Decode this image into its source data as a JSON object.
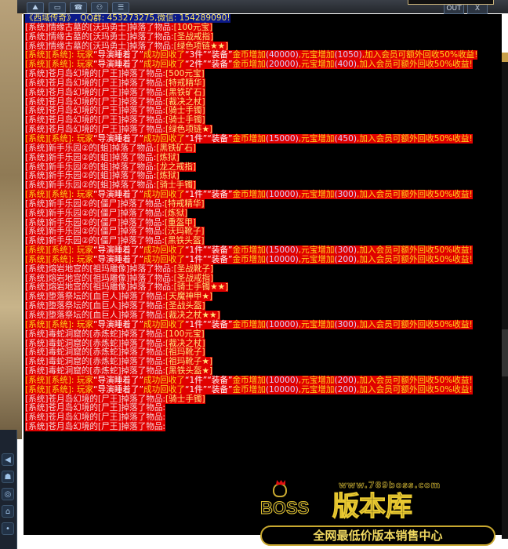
{
  "toolbar": {
    "icons": [
      "mountain-icon",
      "chat-icon",
      "phone-icon",
      "group-icon",
      "message-icon"
    ],
    "out_label": "OUT",
    "close_label": "X"
  },
  "chat": {
    "header": "《西域传奇》, QQ群: 453273275,微信: 154289090!",
    "lines": [
      {
        "prefix": "[系统]情缘古墓的[沃玛勇士]掉落了物品:",
        "item": "[100元宝]"
      },
      {
        "prefix": "[系统]情缘古墓的[沃玛勇士]掉落了物品:",
        "item": "[圣战戒指]"
      },
      {
        "prefix": "[系统]情缘古墓的[沃玛勇士]掉落了物品:",
        "item": "[绿色项链★★]"
      },
      {
        "recycle": [
          "[系统][系统]: 玩家",
          "“导演睡着了”",
          "成功回收了",
          "“3件”",
          "“装备”",
          "金币增加",
          "(40000)",
          ",元宝增加",
          "(1050)",
          ",加入会员可额外回收50%收益!"
        ]
      },
      {
        "recycle": [
          "[系统][系统]: 玩家",
          "“导演睡着了”",
          "成功回收了",
          "“2件”",
          "“装备”",
          "金币增加",
          "(20000)",
          ",元宝增加",
          "(400)",
          ",加入会员可额外回收50%收益!"
        ]
      },
      {
        "prefix": "[系统]苍月岛幻境的[尸王]掉落了物品:",
        "item": "[500元宝]"
      },
      {
        "prefix": "[系统]苍月岛幻境的[尸王]掉落了物品:",
        "item": "[特戒精华]"
      },
      {
        "prefix": "[系统]苍月岛幻境的[尸王]掉落了物品:",
        "item": "[黑铁矿石]"
      },
      {
        "prefix": "[系统]苍月岛幻境的[尸王]掉落了物品:",
        "item": "[裁决之杖]"
      },
      {
        "prefix": "[系统]苍月岛幻境的[尸王]掉落了物品:",
        "item": "[骑士手镯]"
      },
      {
        "prefix": "[系统]苍月岛幻境的[尸王]掉落了物品:",
        "item": "[骑士手镯]"
      },
      {
        "prefix": "[系统]苍月岛幻境的[尸王]掉落了物品:",
        "item": "[绿色项链★]"
      },
      {
        "recycle": [
          "[系统][系统]: 玩家",
          "“导演睡着了”",
          "成功回收了",
          "“1件”",
          "“装备”",
          "金币增加",
          "(15000)",
          ",元宝增加",
          "(450)",
          ",加入会员可额外回收50%收益!"
        ]
      },
      {
        "prefix": "[系统]新手乐园②的[蛆]掉落了物品:",
        "item": "[黑铁矿石]"
      },
      {
        "prefix": "[系统]新手乐园②的[蛆]掉落了物品:",
        "item": "[炼狱]"
      },
      {
        "prefix": "[系统]新手乐园②的[蛆]掉落了物品:",
        "item": "[龙之戒指]"
      },
      {
        "prefix": "[系统]新手乐园②的[蛆]掉落了物品:",
        "item": "[炼狱]"
      },
      {
        "prefix": "[系统]新手乐园②的[蛆]掉落了物品:",
        "item": "[骑士手镯]"
      },
      {
        "recycle": [
          "[系统][系统]: 玩家",
          "“导演睡着了”",
          "成功回收了",
          "“1件”",
          "“装备”",
          "金币增加",
          "(10000)",
          ",元宝增加",
          "(300)",
          ",加入会员可额外回收50%收益!"
        ]
      },
      {
        "prefix": "[系统]新手乐园②的[僵尸]掉落了物品:",
        "item": "[特戒精华]"
      },
      {
        "prefix": "[系统]新手乐园②的[僵尸]掉落了物品:",
        "item": "[炼狱]"
      },
      {
        "prefix": "[系统]新手乐园②的[僵尸]掉落了物品:",
        "item": "[重盔甲]"
      },
      {
        "prefix": "[系统]新手乐园②的[僵尸]掉落了物品:",
        "item": "[沃玛靴子]"
      },
      {
        "prefix": "[系统]新手乐园②的[僵尸]掉落了物品:",
        "item": "[黑铁头盔]"
      },
      {
        "recycle": [
          "[系统][系统]: 玩家",
          "“导演睡着了”",
          "成功回收了",
          "“1件”",
          "“装备”",
          "金币增加",
          "(15000)",
          ",元宝增加",
          "(300)",
          ",加入会员可额外回收50%收益!"
        ]
      },
      {
        "recycle": [
          "[系统][系统]: 玩家",
          "“导演睡着了”",
          "成功回收了",
          "“1件”",
          "“装备”",
          "金币增加",
          "(10000)",
          ",元宝增加",
          "(200)",
          ",加入会员可额外回收50%收益!"
        ]
      },
      {
        "prefix": "[系统]熔岩地宫的[祖玛雕像]掉落了物品:",
        "item": "[圣战靴子]"
      },
      {
        "prefix": "[系统]熔岩地宫的[祖玛雕像]掉落了物品:",
        "item": "[圣战戒指]"
      },
      {
        "prefix": "[系统]熔岩地宫的[祖玛雕像]掉落了物品:",
        "item": "[骑士手镯★★]"
      },
      {
        "prefix": "[系统]堕落祭坛的[血巨人]掉落了物品:",
        "item": "[天魔神甲★]"
      },
      {
        "prefix": "[系统]堕落祭坛的[血巨人]掉落了物品:",
        "item": "[圣战头盔]"
      },
      {
        "prefix": "[系统]堕落祭坛的[血巨人]掉落了物品:",
        "item": "[裁决之杖★★]"
      },
      {
        "recycle": [
          "[系统][系统]: 玩家",
          "“导演睡着了”",
          "成功回收了",
          "“1件”",
          "“装备”",
          "金币增加",
          "(10000)",
          ",元宝增加",
          "(300)",
          ",加入会员可额外回收50%收益!"
        ]
      },
      {
        "prefix": "[系统]毒蛇洞窟的[赤炼蛇]掉落了物品:",
        "item": "[100元宝]"
      },
      {
        "prefix": "[系统]毒蛇洞窟的[赤炼蛇]掉落了物品:",
        "item": "[裁决之杖]"
      },
      {
        "prefix": "[系统]毒蛇洞窟的[赤炼蛇]掉落了物品:",
        "item": "[祖玛靴子]"
      },
      {
        "prefix": "[系统]毒蛇洞窟的[赤炼蛇]掉落了物品:",
        "item": "[祖玛靴子★]"
      },
      {
        "prefix": "[系统]毒蛇洞窟的[赤炼蛇]掉落了物品:",
        "item": "[黑铁头盔★]"
      },
      {
        "recycle": [
          "[系统][系统]: 玩家",
          "“导演睡着了”",
          "成功回收了",
          "“1件”",
          "“装备”",
          "金币增加",
          "(10000)",
          ",元宝增加",
          "(200)",
          ",加入会员可额外回收50%收益!"
        ]
      },
      {
        "recycle": [
          "[系统][系统]: 玩家",
          "“导演睡着了”",
          "成功回收了",
          "“1件”",
          "“装备”",
          "金币增加",
          "(10000)",
          ",元宝增加",
          "(200)",
          ",加入会员可额外回收50%收益!"
        ]
      },
      {
        "prefix": "[系统]苍月岛幻境的[尸王]掉落了物品:",
        "item": "[骑士手镯]"
      },
      {
        "prefix": "[系统]苍月岛幻境的[尸王]掉落了物品:",
        "item": ""
      },
      {
        "prefix": "[系统]苍月岛幻境的[尸王]掉落了物品:",
        "item": ""
      },
      {
        "prefix": "[系统]苍月岛幻境的[尸王]掉落了物品:",
        "item": ""
      }
    ]
  },
  "watermark": {
    "url": "www.789boss.com",
    "brand": "BOSS",
    "name": "版本库",
    "slogan": "全网最低价版本销售中心"
  },
  "colors": {
    "drop_bg": "#e00000",
    "header_bg": "#0c1a8a",
    "text_yellow": "#ffd21a"
  }
}
